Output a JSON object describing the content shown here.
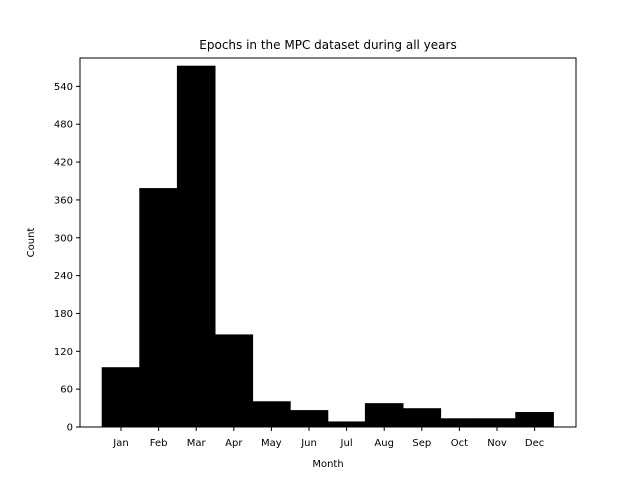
{
  "chart_data": {
    "type": "bar",
    "title": "Epochs in the MPC dataset during all years",
    "xlabel": "Month",
    "ylabel": "Count",
    "categories": [
      "Jan",
      "Feb",
      "Mar",
      "Apr",
      "May",
      "Jun",
      "Jul",
      "Aug",
      "Sep",
      "Oct",
      "Nov",
      "Dec"
    ],
    "values": [
      94,
      378,
      572,
      146,
      40,
      26,
      8,
      37,
      29,
      13,
      13,
      23
    ],
    "ylim": [
      0,
      585
    ],
    "yticks": [
      0,
      60,
      120,
      180,
      240,
      300,
      360,
      420,
      480,
      540
    ],
    "bar_color": "#000000",
    "grid": false,
    "legend": "none"
  }
}
